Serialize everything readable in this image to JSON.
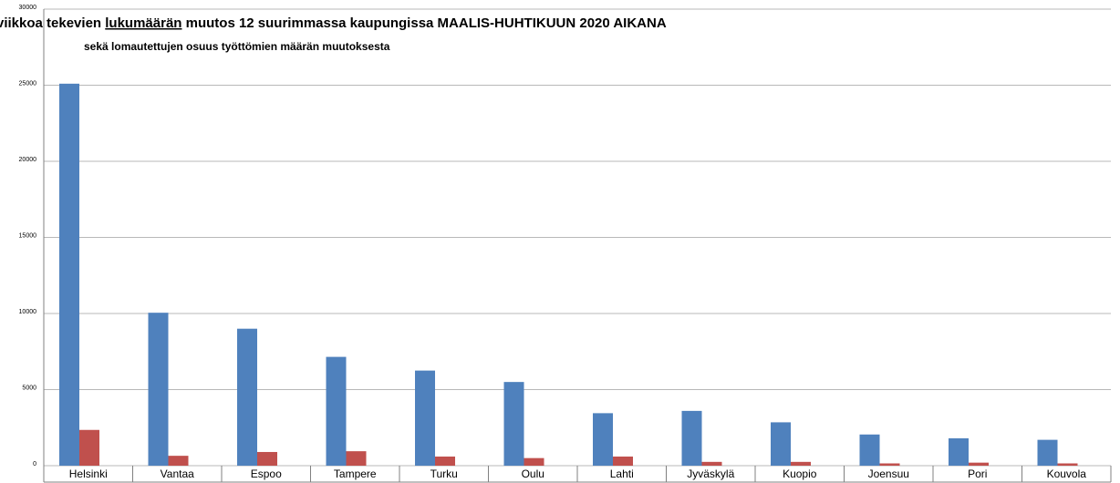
{
  "chart_data": {
    "type": "bar",
    "title": [
      "viikkoa tekevien ",
      "lukumäärän",
      " muutos 12 suurimmassa kaupungissa MAALIS-HUHTIKUUN 2020 AIKANA"
    ],
    "subtitle": "sekä lomautettujen osuus työttömien määrän muutoksesta",
    "categories": [
      "Helsinki",
      "Vantaa",
      "Espoo",
      "Tampere",
      "Turku",
      "Oulu",
      "Lahti",
      "Jyväskylä",
      "Kuopio",
      "Joensuu",
      "Pori",
      "Kouvola"
    ],
    "series": [
      {
        "color": "#4f81bd",
        "values": [
          25100,
          10050,
          9000,
          7150,
          6250,
          5500,
          3450,
          3600,
          2850,
          2050,
          1800,
          1700
        ]
      },
      {
        "color": "#c0504d",
        "values": [
          2350,
          650,
          900,
          950,
          600,
          500,
          600,
          250,
          250,
          150,
          200,
          150
        ]
      }
    ],
    "ylim": [
      0,
      30000
    ],
    "yticks": [
      0,
      5000,
      10000,
      15000,
      20000,
      25000,
      30000
    ],
    "grid": true
  }
}
